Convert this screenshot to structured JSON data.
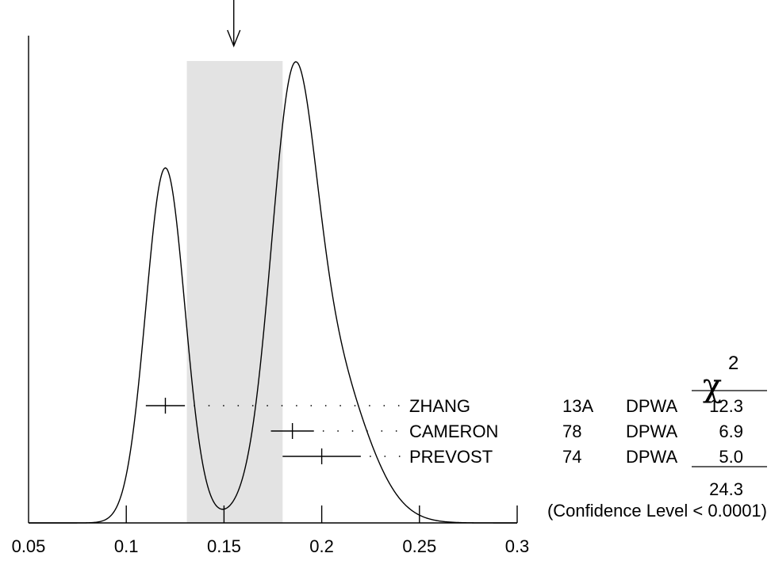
{
  "chart_data": {
    "type": "ideogram",
    "x_axis": {
      "min": 0.05,
      "max": 0.3,
      "ticks": [
        0.05,
        0.1,
        0.15,
        0.2,
        0.25,
        0.3
      ],
      "tick_labels": [
        "0.05",
        "0.1",
        "0.15",
        "0.2",
        "0.25",
        "0.3"
      ]
    },
    "average": {
      "value": 0.155,
      "band": [
        0.131,
        0.18
      ]
    },
    "measurements": [
      {
        "name": "ZHANG",
        "year": "13A",
        "technique": "DPWA",
        "value": 0.12,
        "error": 0.01,
        "chi2": "12.3"
      },
      {
        "name": "CAMERON",
        "year": "78",
        "technique": "DPWA",
        "value": 0.185,
        "error": 0.011,
        "chi2": "6.9"
      },
      {
        "name": "PREVOST",
        "year": "74",
        "technique": "DPWA",
        "value": 0.2,
        "error": 0.02,
        "chi2": "5.0"
      }
    ],
    "chi2_header": {
      "symbol": "χ",
      "exponent": "2"
    },
    "chi2_total": "24.3",
    "confidence_text": "(Confidence Level < 0.0001)",
    "colors": {
      "band": "#e3e3e3",
      "line": "#000000"
    },
    "legend": "none",
    "grid": false
  }
}
